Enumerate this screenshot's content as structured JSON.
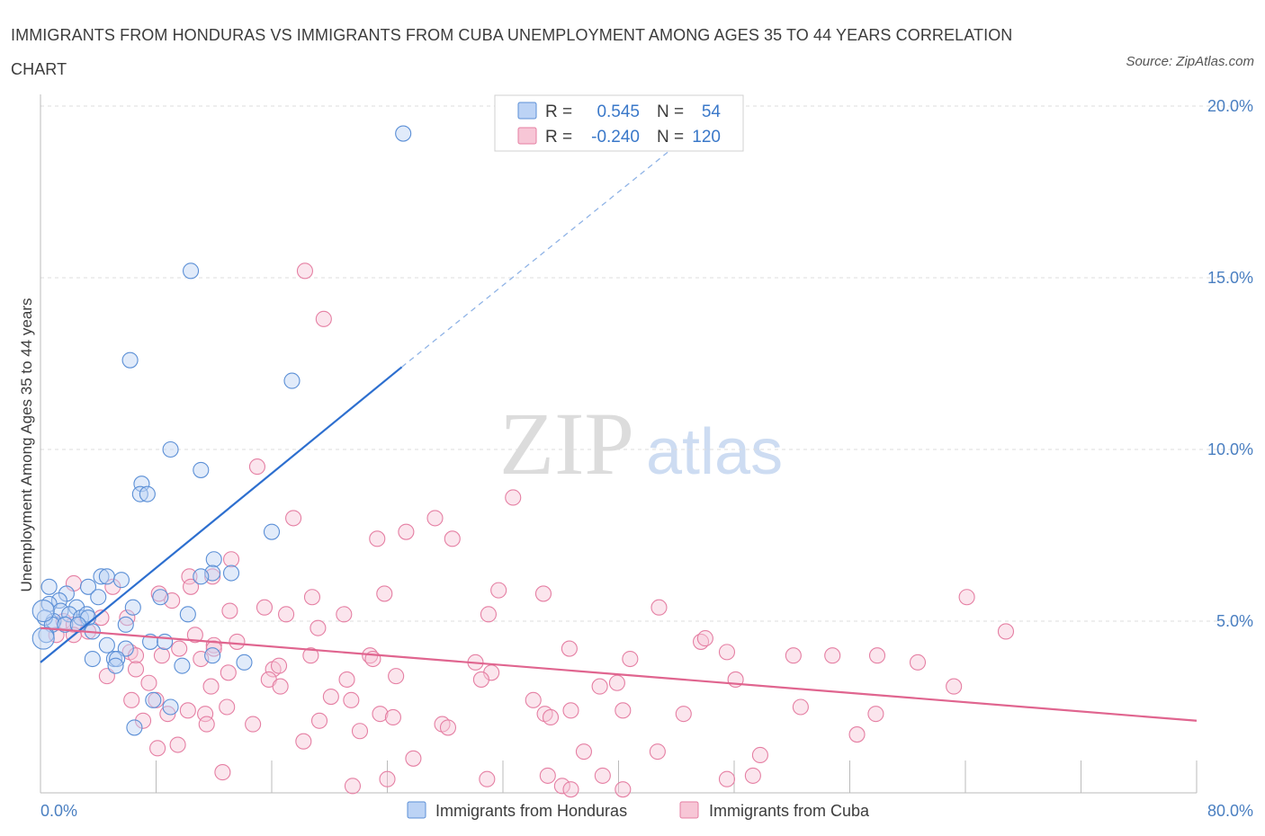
{
  "title": "IMMIGRANTS FROM HONDURAS VS IMMIGRANTS FROM CUBA UNEMPLOYMENT AMONG AGES 35 TO 44 YEARS CORRELATION CHART",
  "source": "Source: ZipAtlas.com",
  "watermark": {
    "zip": "ZIP",
    "atlas": "atlas"
  },
  "colors": {
    "honduras": "#5b8fd6",
    "honduras_fill": "#bcd3f5",
    "cuba": "#e57fa3",
    "cuba_fill": "#f7c6d6",
    "honduras_line": "#2d6fcf",
    "cuba_line": "#e0658f"
  },
  "legend": {
    "honduras": {
      "r_label": "R =",
      "r_value": "0.545",
      "n_label": "N =",
      "n_value": "54"
    },
    "cuba": {
      "r_label": "R =",
      "r_value": "-0.240",
      "n_label": "N =",
      "n_value": "120"
    }
  },
  "bottom_legend": {
    "honduras": "Immigrants from Honduras",
    "cuba": "Immigrants from Cuba"
  },
  "chart_data": {
    "type": "scatter",
    "title": "IMMIGRANTS FROM HONDURAS VS IMMIGRANTS FROM CUBA UNEMPLOYMENT AMONG AGES 35 TO 44 YEARS CORRELATION CHART",
    "ylabel": "Unemployment Among Ages 35 to 44 years",
    "xlabel": "",
    "xlim": [
      0,
      80
    ],
    "ylim": [
      0,
      20
    ],
    "x_ticks": [
      "0.0%",
      "80.0%"
    ],
    "y_ticks": [
      {
        "v": 5,
        "label": "5.0%"
      },
      {
        "v": 10,
        "label": "10.0%"
      },
      {
        "v": 15,
        "label": "15.0%"
      },
      {
        "v": 20,
        "label": "20.0%"
      }
    ],
    "grid": true,
    "legend_position": "top-center",
    "series": [
      {
        "name": "Immigrants from Honduras",
        "color": "#5b8fd6",
        "trend": {
          "x0": 0,
          "y0": 3.8,
          "x1": 25,
          "y1": 12.4,
          "x_dash_end": 45,
          "y_dash_end": 19.2
        },
        "points": [
          [
            25.1,
            19.2
          ],
          [
            10.4,
            15.2
          ],
          [
            6.2,
            12.6
          ],
          [
            17.4,
            12.0
          ],
          [
            9.0,
            10.0
          ],
          [
            11.1,
            9.4
          ],
          [
            7.0,
            9.0
          ],
          [
            6.9,
            8.7
          ],
          [
            7.4,
            8.7
          ],
          [
            16.0,
            7.6
          ],
          [
            12.0,
            6.8
          ],
          [
            11.9,
            6.4
          ],
          [
            13.2,
            6.4
          ],
          [
            4.2,
            6.3
          ],
          [
            4.6,
            6.3
          ],
          [
            11.1,
            6.3
          ],
          [
            5.6,
            6.2
          ],
          [
            3.3,
            6.0
          ],
          [
            0.6,
            6.0
          ],
          [
            1.8,
            5.8
          ],
          [
            4.0,
            5.7
          ],
          [
            6.4,
            5.4
          ],
          [
            8.3,
            5.7
          ],
          [
            1.3,
            5.6
          ],
          [
            0.6,
            5.5
          ],
          [
            1.4,
            5.3
          ],
          [
            2.5,
            5.4
          ],
          [
            10.2,
            5.2
          ],
          [
            2.0,
            5.2
          ],
          [
            2.8,
            5.1
          ],
          [
            3.2,
            5.2
          ],
          [
            3.3,
            5.1
          ],
          [
            0.9,
            5.0
          ],
          [
            0.3,
            5.1
          ],
          [
            0.8,
            4.9
          ],
          [
            1.7,
            4.9
          ],
          [
            2.6,
            4.9
          ],
          [
            5.9,
            4.9
          ],
          [
            3.6,
            4.7
          ],
          [
            0.4,
            4.6
          ],
          [
            7.6,
            4.4
          ],
          [
            8.6,
            4.4
          ],
          [
            4.6,
            4.3
          ],
          [
            5.9,
            4.2
          ],
          [
            11.9,
            4.0
          ],
          [
            5.1,
            3.9
          ],
          [
            5.3,
            3.9
          ],
          [
            3.6,
            3.9
          ],
          [
            9.8,
            3.7
          ],
          [
            14.1,
            3.8
          ],
          [
            5.2,
            3.7
          ],
          [
            7.8,
            2.7
          ],
          [
            9.0,
            2.5
          ],
          [
            6.5,
            1.9
          ]
        ]
      },
      {
        "name": "Immigrants from Cuba",
        "color": "#e57fa3",
        "trend": {
          "x0": 0,
          "y0": 4.8,
          "x1": 80,
          "y1": 2.1
        },
        "points": [
          [
            18.3,
            15.2
          ],
          [
            19.6,
            13.8
          ],
          [
            15.0,
            9.5
          ],
          [
            32.7,
            8.6
          ],
          [
            17.5,
            8.0
          ],
          [
            27.3,
            8.0
          ],
          [
            25.3,
            7.6
          ],
          [
            23.3,
            7.4
          ],
          [
            28.5,
            7.4
          ],
          [
            13.2,
            6.8
          ],
          [
            10.3,
            6.3
          ],
          [
            11.9,
            6.3
          ],
          [
            2.3,
            6.1
          ],
          [
            5.0,
            6.0
          ],
          [
            10.4,
            6.0
          ],
          [
            31.7,
            5.9
          ],
          [
            34.8,
            5.8
          ],
          [
            8.2,
            5.8
          ],
          [
            18.8,
            5.7
          ],
          [
            23.8,
            5.8
          ],
          [
            64.1,
            5.7
          ],
          [
            9.1,
            5.6
          ],
          [
            15.5,
            5.4
          ],
          [
            42.8,
            5.4
          ],
          [
            13.1,
            5.3
          ],
          [
            31.0,
            5.2
          ],
          [
            21.0,
            5.2
          ],
          [
            17.0,
            5.2
          ],
          [
            4.2,
            5.1
          ],
          [
            1.6,
            5.0
          ],
          [
            6.0,
            5.1
          ],
          [
            2.3,
            4.9
          ],
          [
            19.2,
            4.8
          ],
          [
            3.3,
            4.7
          ],
          [
            66.8,
            4.7
          ],
          [
            10.7,
            4.6
          ],
          [
            1.1,
            4.6
          ],
          [
            2.3,
            4.6
          ],
          [
            13.6,
            4.4
          ],
          [
            45.7,
            4.4
          ],
          [
            46.0,
            4.5
          ],
          [
            12.0,
            4.3
          ],
          [
            9.6,
            4.2
          ],
          [
            12.0,
            4.2
          ],
          [
            36.6,
            4.2
          ],
          [
            6.2,
            4.1
          ],
          [
            6.6,
            4.0
          ],
          [
            8.4,
            4.0
          ],
          [
            11.1,
            3.9
          ],
          [
            18.7,
            4.0
          ],
          [
            22.8,
            4.0
          ],
          [
            23.0,
            3.9
          ],
          [
            52.1,
            4.0
          ],
          [
            54.8,
            4.0
          ],
          [
            30.1,
            3.8
          ],
          [
            40.8,
            3.9
          ],
          [
            47.5,
            4.1
          ],
          [
            57.9,
            4.0
          ],
          [
            60.7,
            3.8
          ],
          [
            6.6,
            3.6
          ],
          [
            13.0,
            3.5
          ],
          [
            16.1,
            3.6
          ],
          [
            16.5,
            3.7
          ],
          [
            24.6,
            3.4
          ],
          [
            31.2,
            3.5
          ],
          [
            4.6,
            3.4
          ],
          [
            7.5,
            3.2
          ],
          [
            15.8,
            3.3
          ],
          [
            21.2,
            3.3
          ],
          [
            30.5,
            3.3
          ],
          [
            48.1,
            3.3
          ],
          [
            11.8,
            3.1
          ],
          [
            16.6,
            3.1
          ],
          [
            38.7,
            3.1
          ],
          [
            39.9,
            3.2
          ],
          [
            63.2,
            3.1
          ],
          [
            20.1,
            2.8
          ],
          [
            6.3,
            2.7
          ],
          [
            8.0,
            2.7
          ],
          [
            21.5,
            2.7
          ],
          [
            34.1,
            2.7
          ],
          [
            12.9,
            2.5
          ],
          [
            52.6,
            2.5
          ],
          [
            10.2,
            2.4
          ],
          [
            36.7,
            2.4
          ],
          [
            40.3,
            2.4
          ],
          [
            11.4,
            2.3
          ],
          [
            8.8,
            2.3
          ],
          [
            23.5,
            2.3
          ],
          [
            34.9,
            2.3
          ],
          [
            44.5,
            2.3
          ],
          [
            57.8,
            2.3
          ],
          [
            35.3,
            2.2
          ],
          [
            24.4,
            2.2
          ],
          [
            19.3,
            2.1
          ],
          [
            7.1,
            2.1
          ],
          [
            11.5,
            2.0
          ],
          [
            14.7,
            2.0
          ],
          [
            27.8,
            2.0
          ],
          [
            28.2,
            1.9
          ],
          [
            56.5,
            1.7
          ],
          [
            22.1,
            1.8
          ],
          [
            18.2,
            1.5
          ],
          [
            9.5,
            1.4
          ],
          [
            8.1,
            1.3
          ],
          [
            42.7,
            1.2
          ],
          [
            37.6,
            1.2
          ],
          [
            49.8,
            1.1
          ],
          [
            25.8,
            1.0
          ],
          [
            12.6,
            0.6
          ],
          [
            35.1,
            0.5
          ],
          [
            38.9,
            0.5
          ],
          [
            49.3,
            0.5
          ],
          [
            24.0,
            0.4
          ],
          [
            30.9,
            0.4
          ],
          [
            47.5,
            0.4
          ],
          [
            36.1,
            0.2
          ],
          [
            21.6,
            0.2
          ],
          [
            36.7,
            0.1
          ],
          [
            40.3,
            0.1
          ]
        ]
      }
    ]
  }
}
